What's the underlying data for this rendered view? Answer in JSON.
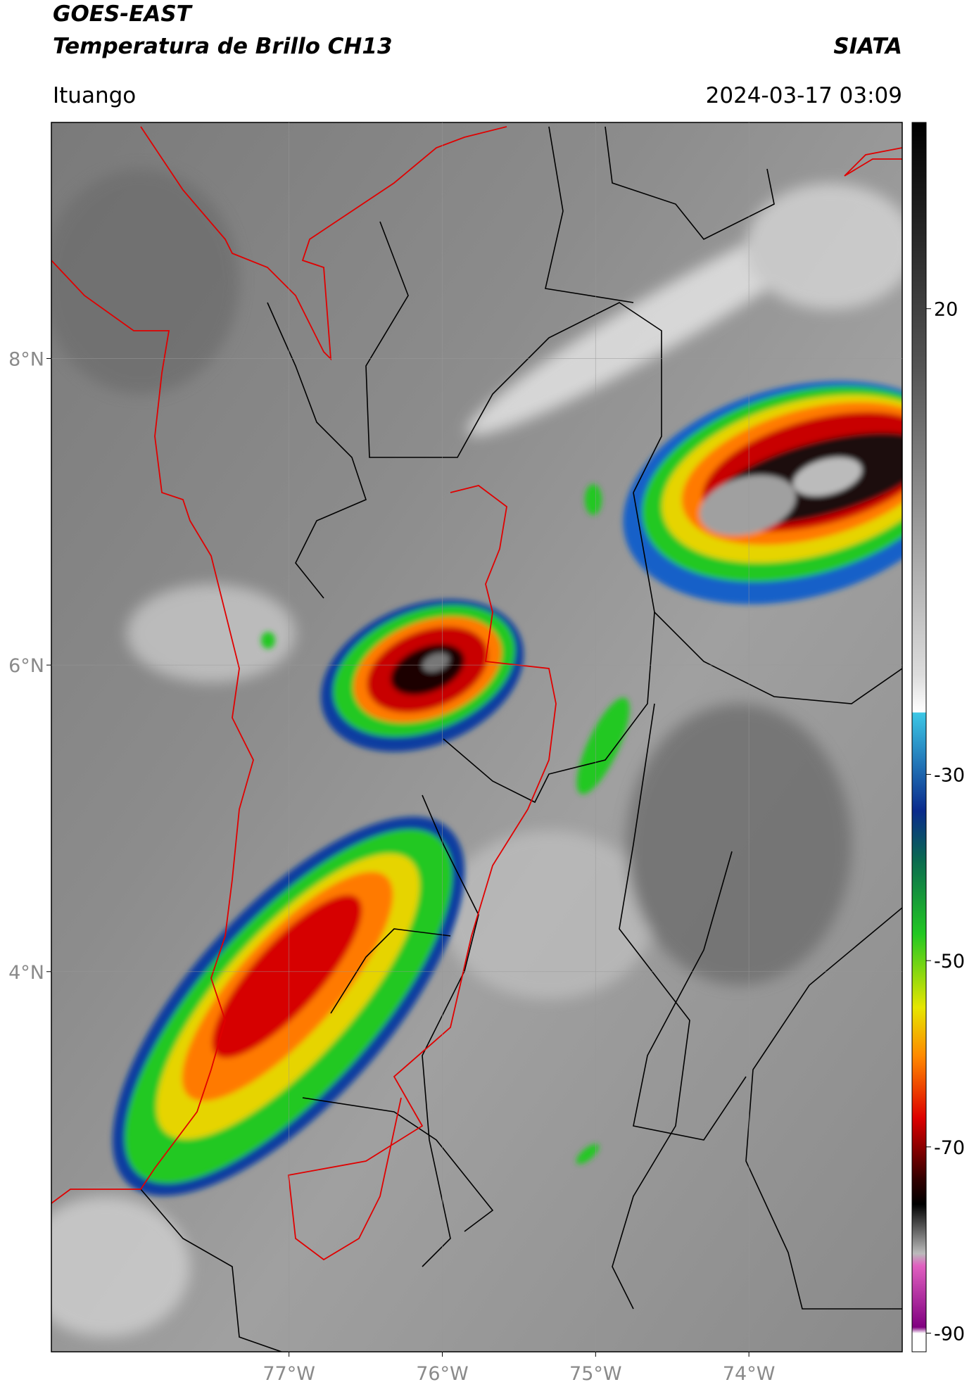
{
  "header": {
    "title": "GOES-EAST",
    "subtitle": "Temperatura de Brillo CH13",
    "source": "SIATA",
    "location": "Ituango",
    "datetime": "2024-03-17 03:09"
  },
  "map": {
    "latlim": [
      1.52,
      9.54
    ],
    "lonlim": [
      -78.55,
      -73.0
    ],
    "lat_ticks": [
      {
        "value": 8,
        "label": "8°N"
      },
      {
        "value": 6,
        "label": "6°N"
      },
      {
        "value": 4,
        "label": "4°N"
      }
    ],
    "lon_ticks": [
      {
        "value": -77,
        "label": "77°W"
      },
      {
        "value": -76,
        "label": "76°W"
      },
      {
        "value": -75,
        "label": "75°W"
      },
      {
        "value": -74,
        "label": "74°W"
      }
    ]
  },
  "colorbar": {
    "lim": [
      -92,
      40
    ],
    "ticks": [
      20,
      -30,
      -50,
      -70,
      -90
    ]
  }
}
